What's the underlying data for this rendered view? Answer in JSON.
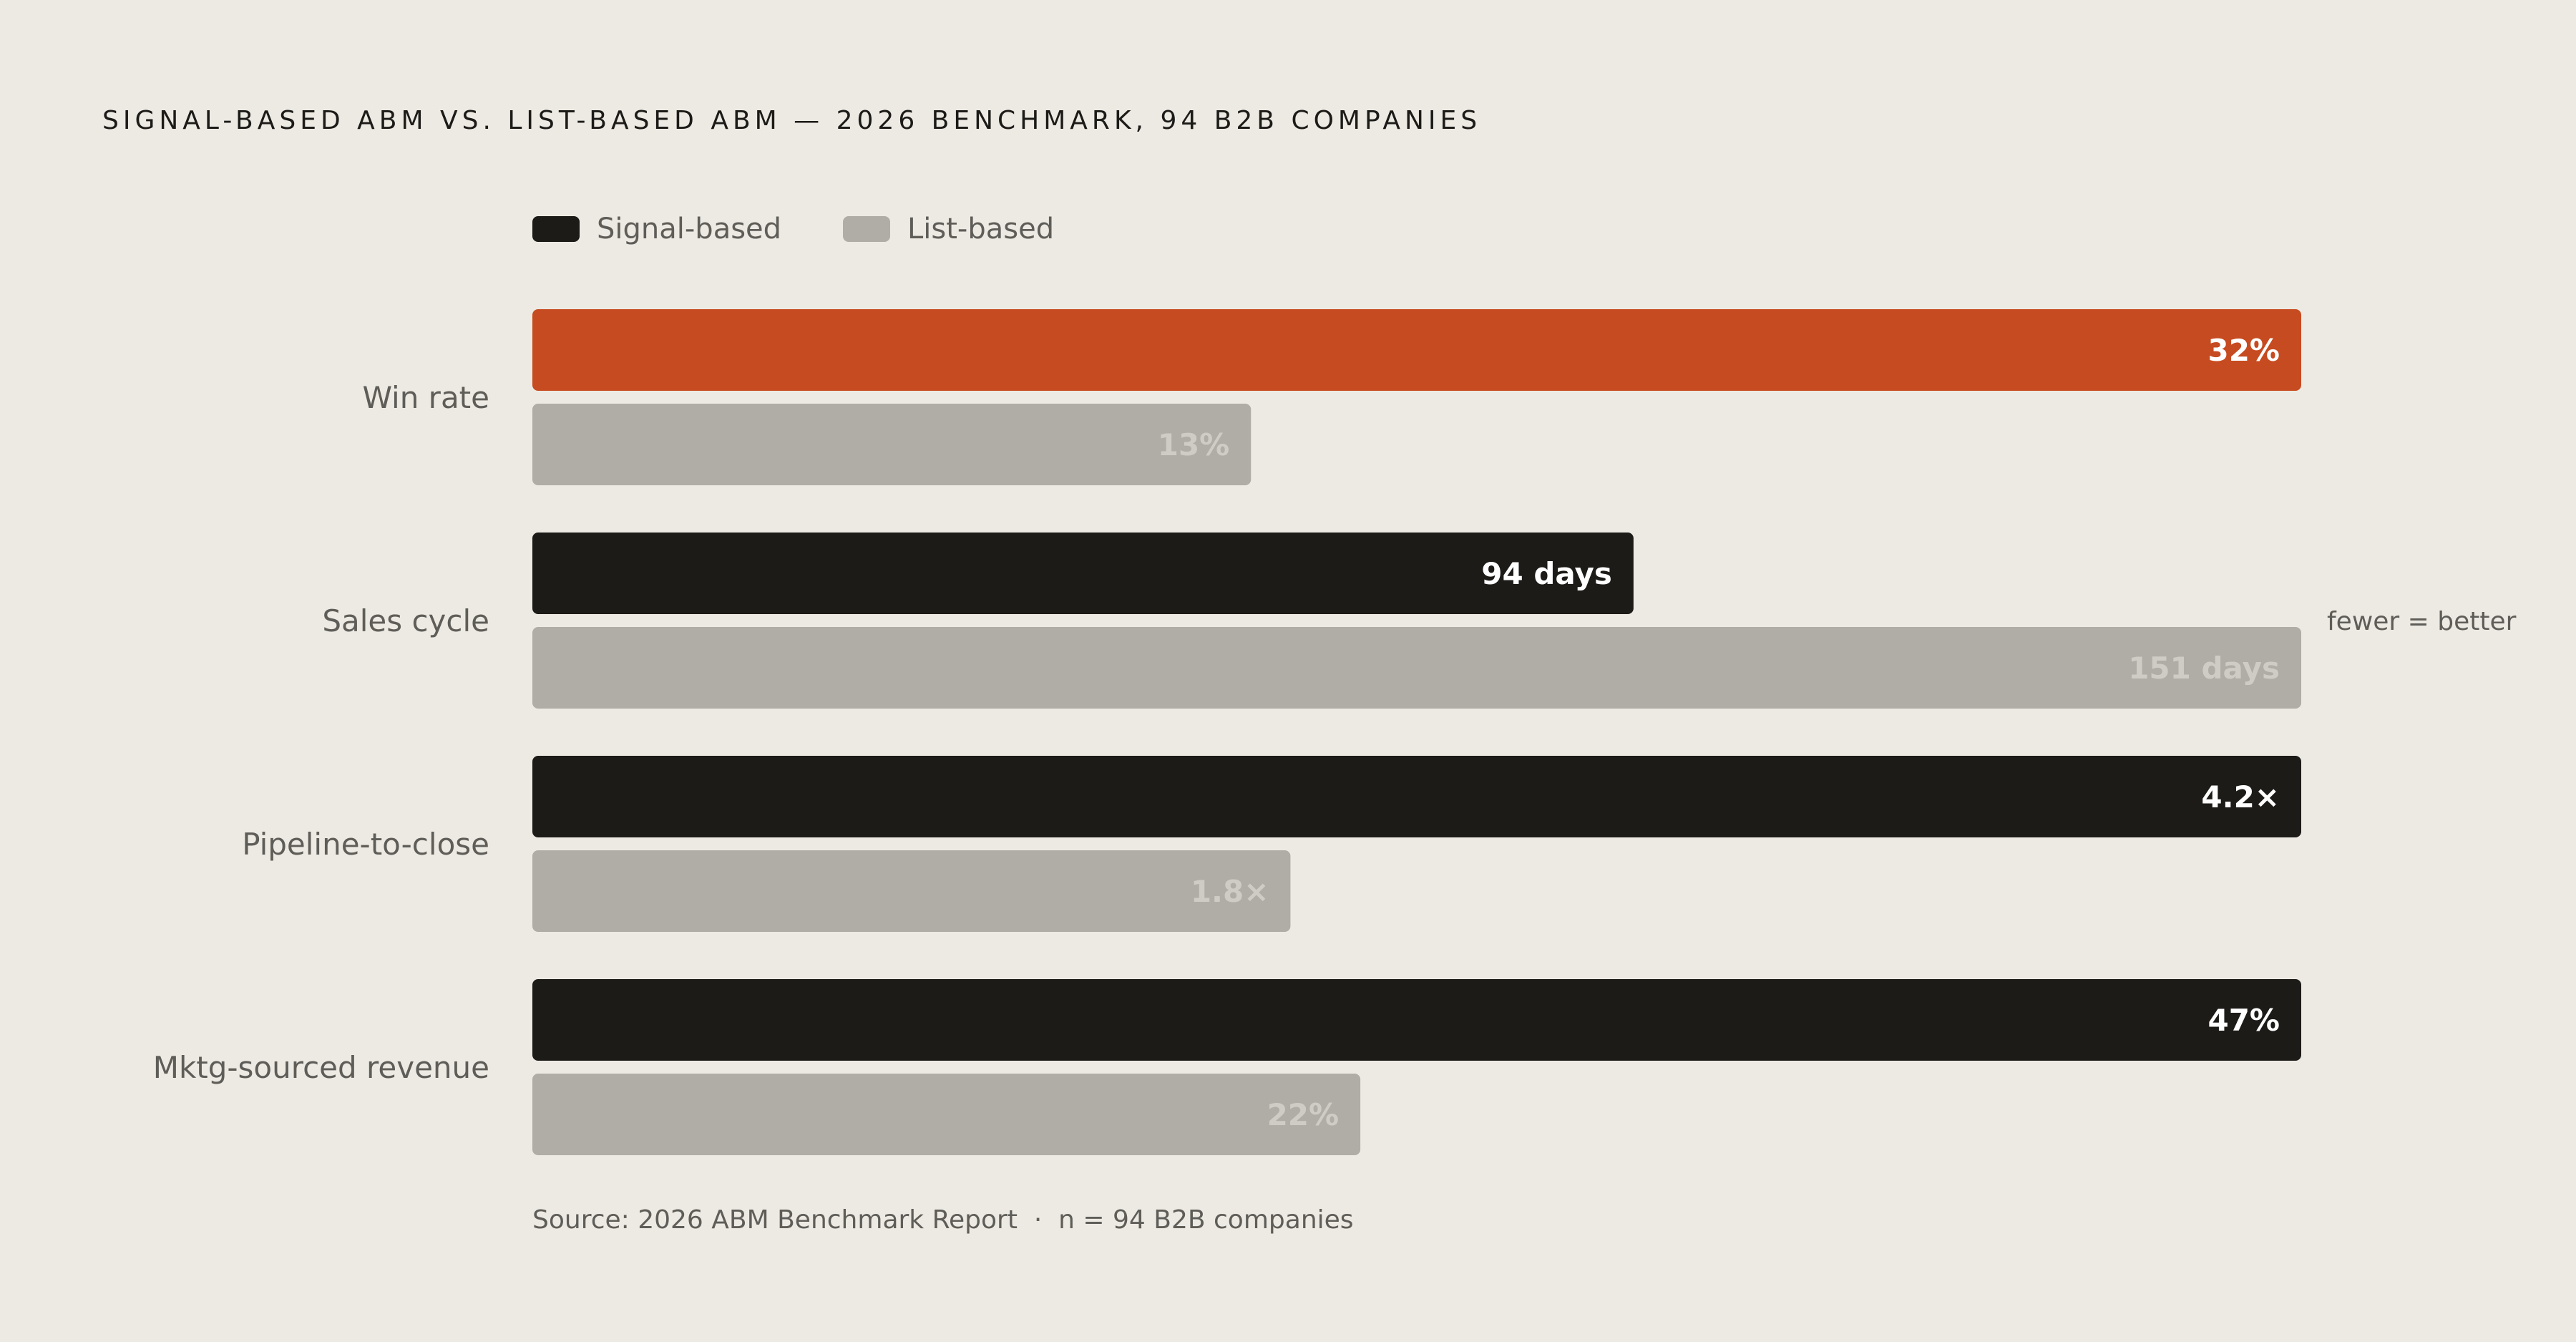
{
  "colors": {
    "background": "#edeae3",
    "signal": "#1c1b18",
    "list": "#b0ada6",
    "highlight": "#c64b20",
    "label_on_dark": "#ffffff",
    "label_on_list": "#cfccc6"
  },
  "chart_data": {
    "type": "bar",
    "orientation": "horizontal",
    "title": "SIGNAL-BASED ABM VS. LIST-BASED ABM — 2026 BENCHMARK, 94 B2B COMPANIES",
    "categories": [
      "Win rate",
      "Sales cycle",
      "Pipeline-to-close",
      "Mktg-sourced revenue"
    ],
    "series": [
      {
        "name": "Signal-based",
        "values": [
          32,
          94,
          4.2,
          47
        ],
        "labels": [
          "32%",
          "94 days",
          "4.2×",
          "47%"
        ]
      },
      {
        "name": "List-based",
        "values": [
          13,
          151,
          1.8,
          22
        ],
        "labels": [
          "13%",
          "151 days",
          "1.8×",
          "22%"
        ]
      }
    ],
    "highlight": {
      "series": "Signal-based",
      "category": "Win rate"
    },
    "annotations": [
      {
        "category": "Sales cycle",
        "text": "fewer = better"
      }
    ],
    "legend_position": "top-left",
    "grid": false,
    "source": "Source: 2026 ABM Benchmark Report  ·  n = 94 B2B companies"
  }
}
